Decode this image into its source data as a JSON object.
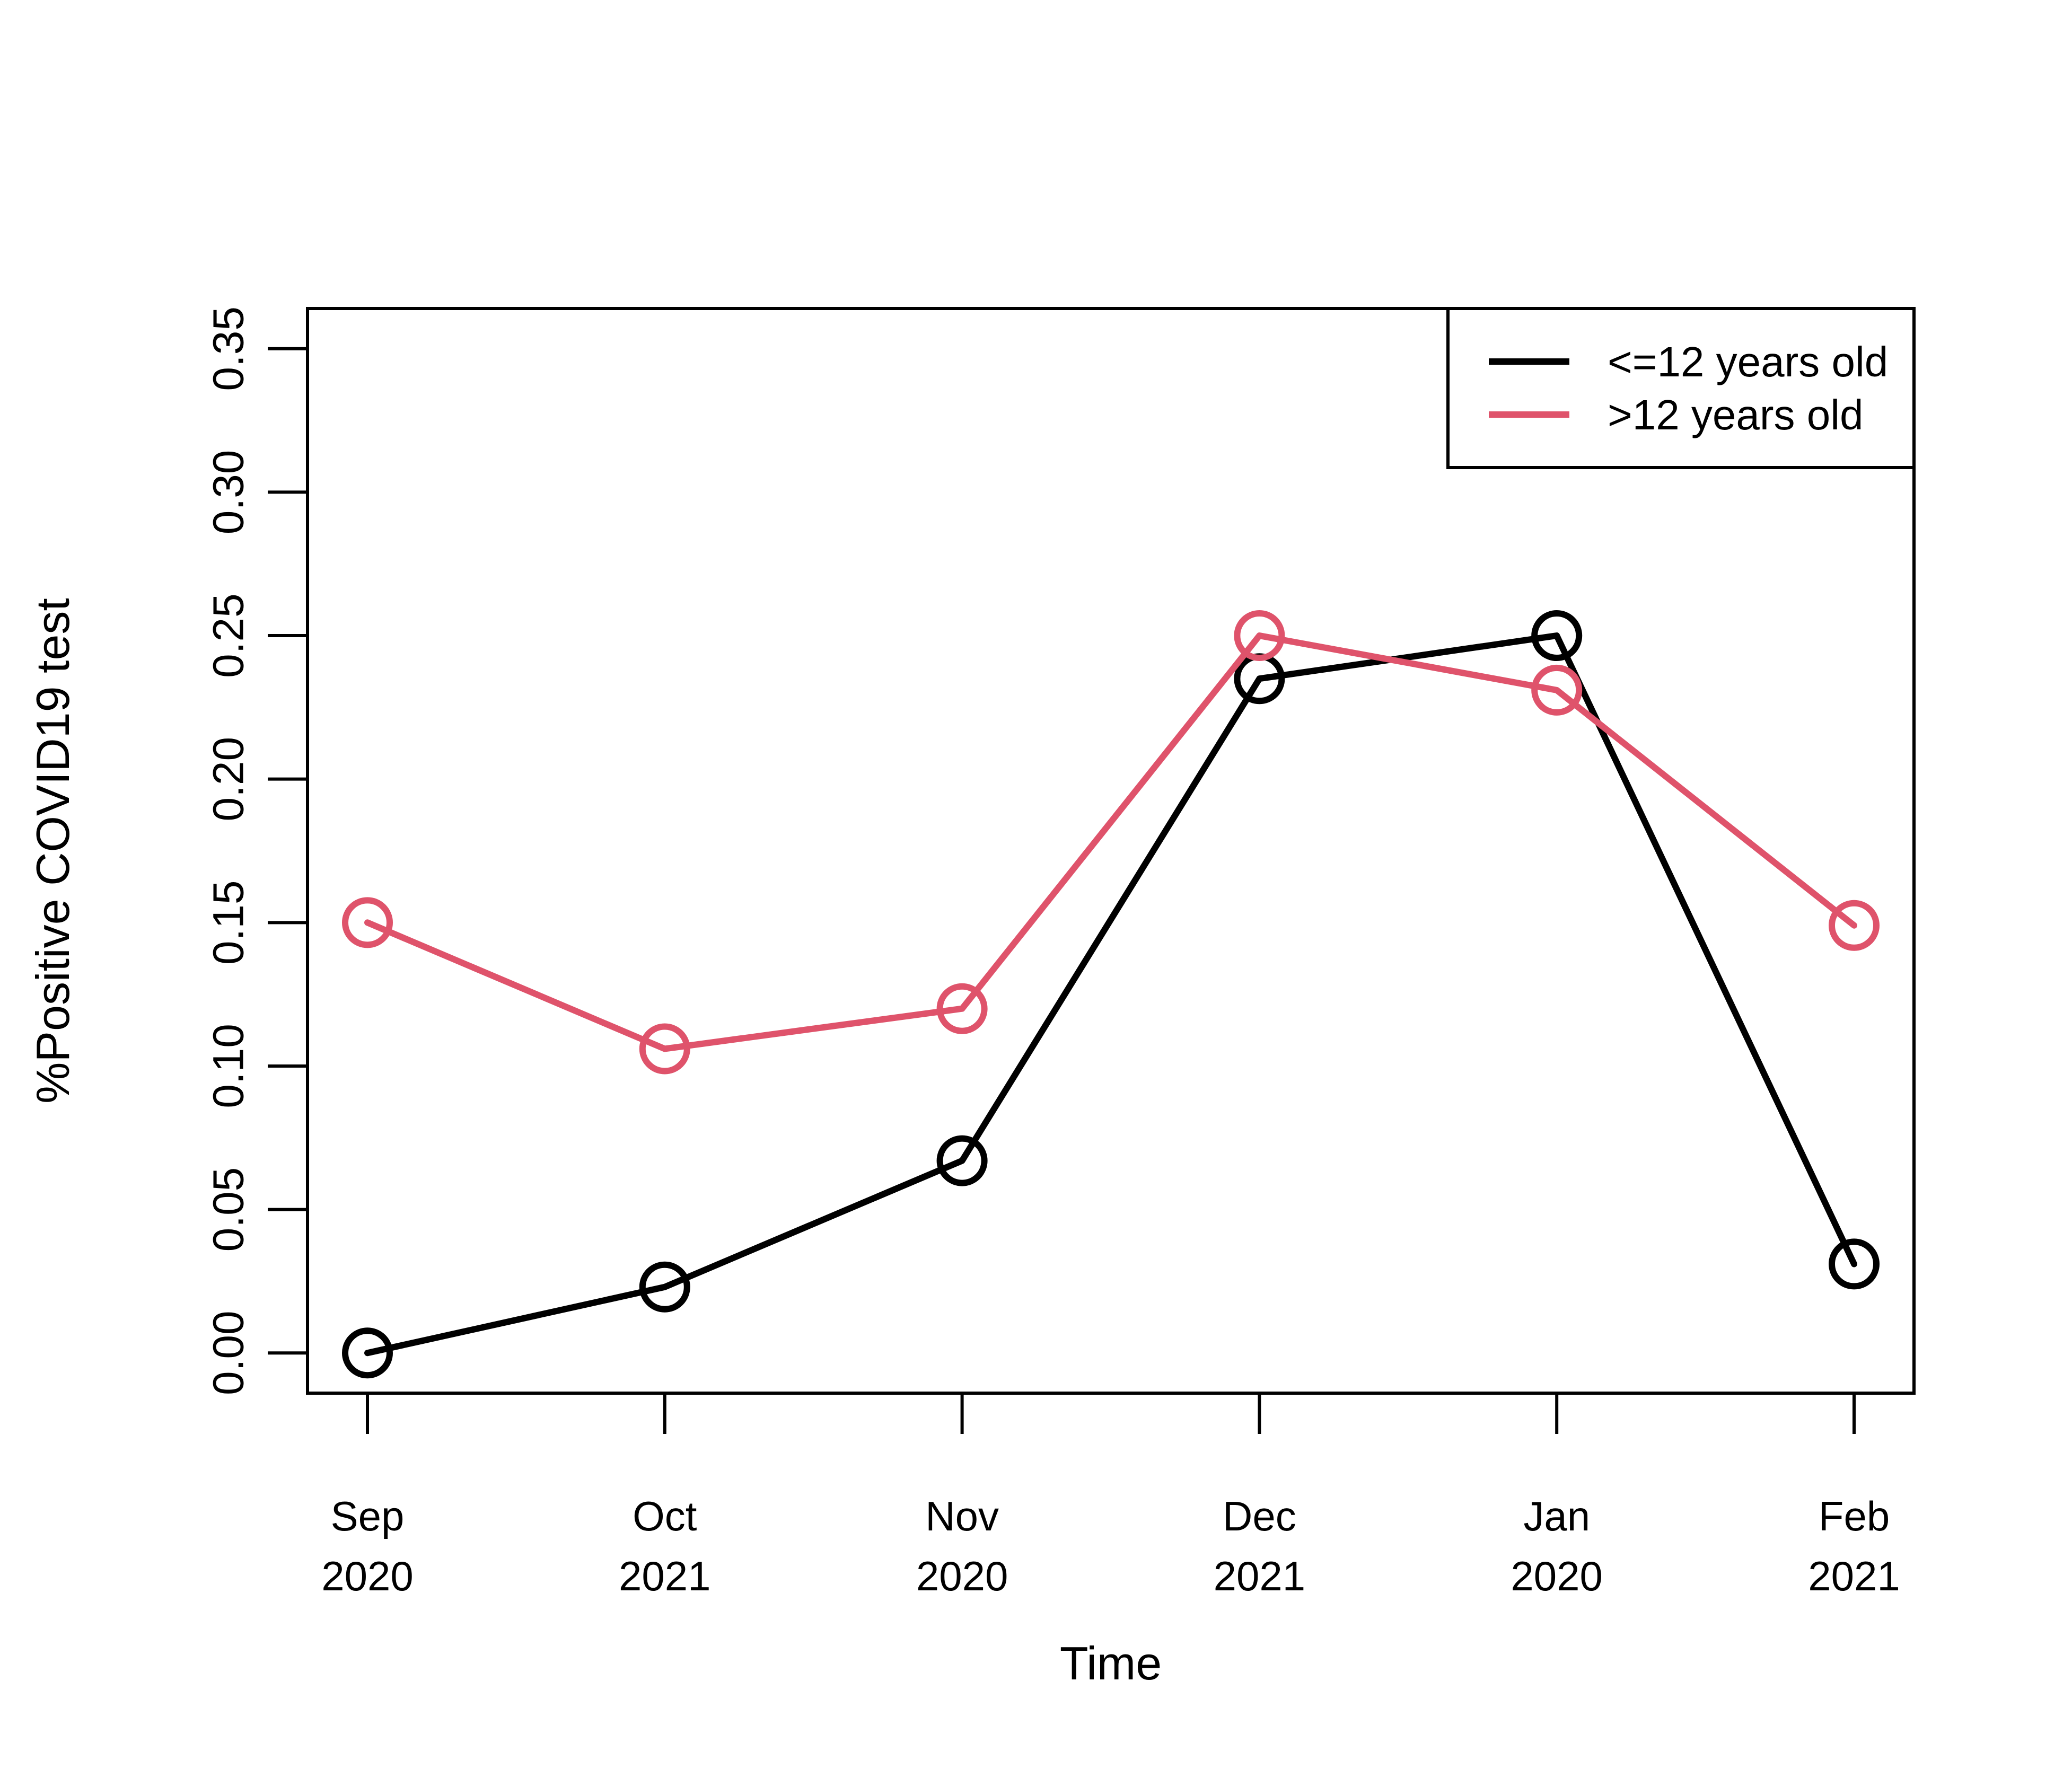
{
  "chart_data": {
    "type": "line",
    "title": "",
    "xlabel": "Time",
    "ylabel": "%Positive COVID19 test",
    "categories": [
      [
        "Sep",
        "2020"
      ],
      [
        "Oct",
        "2021"
      ],
      [
        "Nov",
        "2020"
      ],
      [
        "Dec",
        "2021"
      ],
      [
        "Jan",
        "2020"
      ],
      [
        "Feb",
        "2021"
      ]
    ],
    "ylim": [
      -0.014,
      0.364
    ],
    "yticks": [
      "0.00",
      "0.05",
      "0.10",
      "0.15",
      "0.20",
      "0.25",
      "0.30",
      "0.35"
    ],
    "grid": false,
    "legend_position": "top-right",
    "series": [
      {
        "name": "<=12 years old",
        "color": "#000000",
        "marker": "open-circle",
        "values": [
          0.0,
          0.023,
          0.067,
          0.235,
          0.25,
          0.031
        ]
      },
      {
        "name": ">12 years old",
        "color": "#DF536B",
        "marker": "open-circle",
        "values": [
          0.15,
          0.106,
          0.12,
          0.25,
          0.231,
          0.149
        ]
      }
    ]
  }
}
